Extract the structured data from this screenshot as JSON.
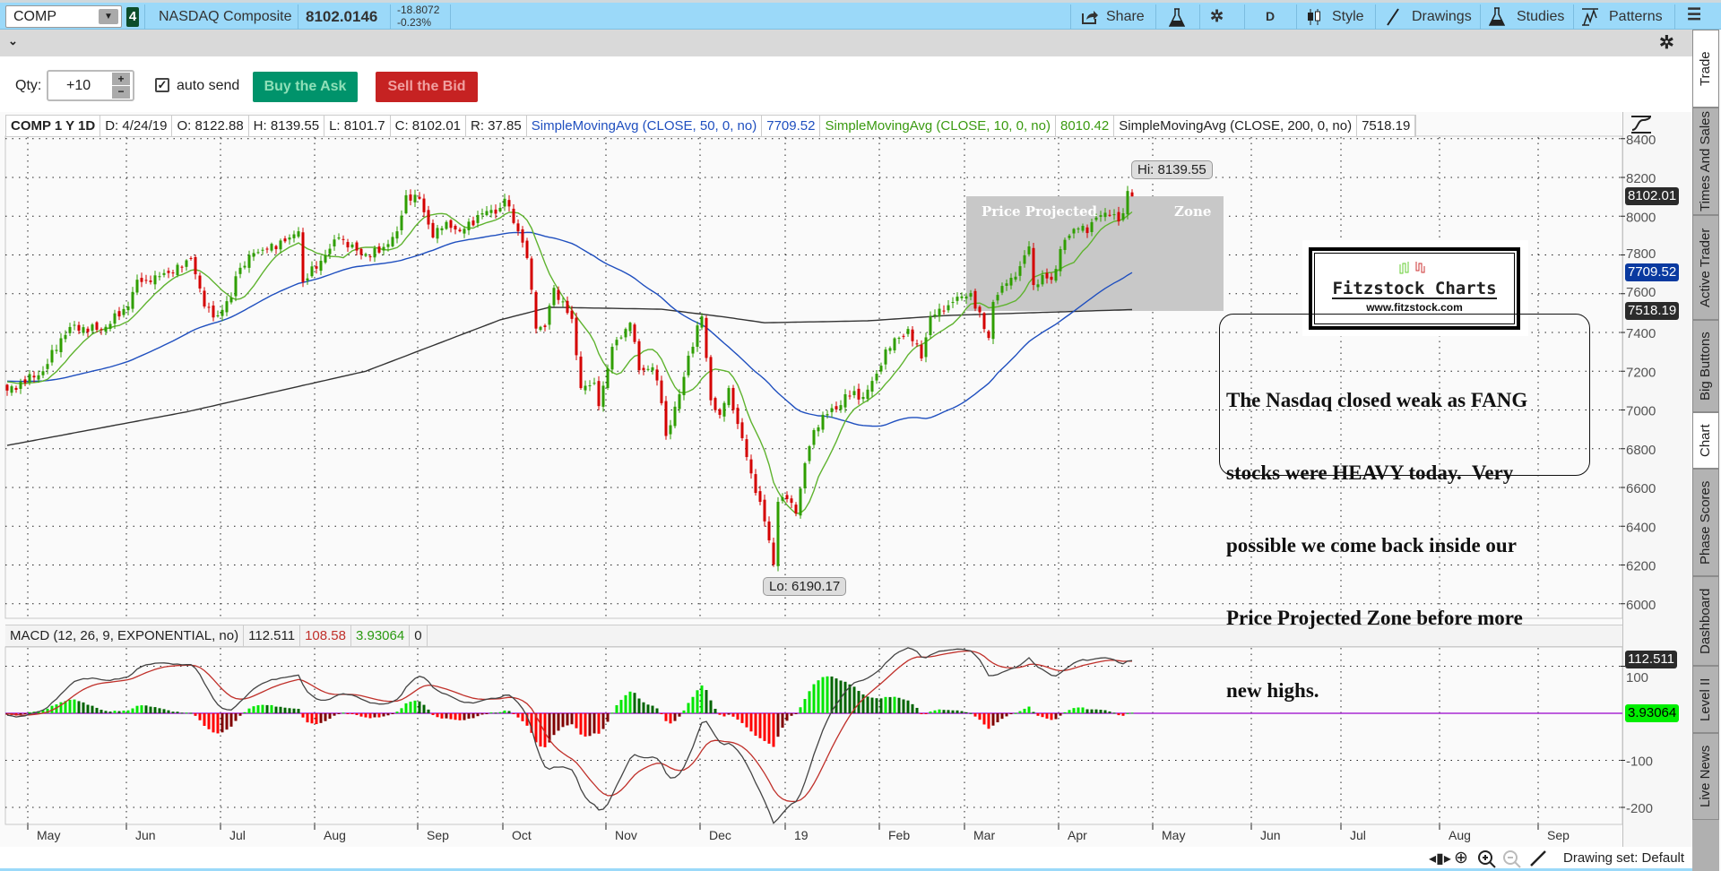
{
  "toolbar": {
    "symbol": "COMP",
    "link_badge": "4",
    "description": "NASDAQ Composite",
    "last": "8102.0146",
    "net_change": "-18.8072",
    "pct_change": "-0.23%",
    "share_label": "Share",
    "period": "D",
    "style_label": "Style",
    "drawings_label": "Drawings",
    "studies_label": "Studies",
    "patterns_label": "Patterns"
  },
  "order_bar": {
    "qty_label": "Qty:",
    "qty_value": "+10",
    "auto_send_label": "auto send",
    "auto_send_checked": true,
    "buy_label": "Buy the Ask",
    "sell_label": "Sell the Bid"
  },
  "legend": {
    "title": "COMP 1 Y 1D",
    "date": "D: 4/24/19",
    "open": "O: 8122.88",
    "high": "H: 8139.55",
    "low": "L: 8101.7",
    "close": "C: 8102.01",
    "range": "R: 37.85",
    "sma50_label": "SimpleMovingAvg (CLOSE, 50, 0, no)",
    "sma50_value": "7709.52",
    "sma10_label": "SimpleMovingAvg (CLOSE, 10, 0, no)",
    "sma10_value": "8010.42",
    "sma200_label": "SimpleMovingAvg (CLOSE, 200, 0, no)",
    "sma200_value": "7518.19"
  },
  "macd_legend": {
    "label": "MACD (12, 26, 9, EXPONENTIAL, no)",
    "value": "112.511",
    "avg": "108.58",
    "diff": "3.93064",
    "zero": "0"
  },
  "price_badges": {
    "last": "8102.01",
    "sma50": "7709.52",
    "sma200": "7518.19",
    "macd": "112.511",
    "hist": "3.93064"
  },
  "annotations": {
    "hi": "Hi: 8139.55",
    "lo": "Lo: 6190.17",
    "zone_left": "Price Projected",
    "zone_right": "Zone",
    "logo_title": "Fitzstock Charts",
    "logo_url": "www.fitzstock.com",
    "comment_lines": [
      "The Nasdaq closed weak as FANG",
      "stocks were HEAVY today.  Very",
      "possible we come back inside our",
      "Price Projected Zone before more",
      "new highs."
    ]
  },
  "side_tabs": [
    "Trade",
    "Times And Sales",
    "Active Trader",
    "Big Buttons",
    "Chart",
    "Phase Scores",
    "Dashboard",
    "Level II",
    "Live News"
  ],
  "status_bar": {
    "drawing_set": "Drawing set: Default"
  },
  "colors": {
    "toolbar_bg": "#9bd9f9",
    "buy": "#00936b",
    "sell": "#c62222",
    "up_candle": "#2f9e00",
    "down_candle": "#d40000",
    "sma50": "#1f4fbf",
    "sma10": "#5fb32f",
    "sma200": "#333333",
    "macd_line": "#444444",
    "macd_avg": "#c0302a",
    "zero_line": "#9900cc"
  },
  "chart_data": {
    "type": "bar",
    "style": "candlestick",
    "title": "COMP 1 Y 1D",
    "num_bars": 252,
    "y_ticks": [
      6000,
      6200,
      6400,
      6600,
      6800,
      7000,
      7200,
      7400,
      7600,
      7800,
      8000,
      8200,
      8400
    ],
    "ylim": [
      5950,
      8420
    ],
    "x_ticks": [
      "May",
      "Jun",
      "Jul",
      "Aug",
      "Sep",
      "Oct",
      "Nov",
      "Dec",
      "19",
      "Feb",
      "Mar",
      "Apr",
      "May",
      "Jun",
      "Jul",
      "Aug",
      "Sep"
    ],
    "last_bar": {
      "open": 8122.88,
      "high": 8139.55,
      "low": 8101.7,
      "close": 8102.01
    },
    "period_low": 6190.17,
    "period_high": 8139.55,
    "prehistory_close": 7150,
    "close_anchors": [
      [
        0,
        7100
      ],
      [
        8,
        7200
      ],
      [
        12,
        7370
      ],
      [
        14,
        7428
      ],
      [
        21,
        7414
      ],
      [
        27,
        7534
      ],
      [
        29,
        7672
      ],
      [
        32,
        7660
      ],
      [
        35,
        7706
      ],
      [
        39,
        7736
      ],
      [
        41,
        7782
      ],
      [
        44,
        7534
      ],
      [
        47,
        7488
      ],
      [
        50,
        7580
      ],
      [
        51,
        7690
      ],
      [
        55,
        7810
      ],
      [
        58,
        7830
      ],
      [
        63,
        7890
      ],
      [
        65,
        7922
      ],
      [
        66,
        7660
      ],
      [
        71,
        7800
      ],
      [
        74,
        7890
      ],
      [
        79,
        7800
      ],
      [
        83,
        7812
      ],
      [
        87,
        7922
      ],
      [
        89,
        8108
      ],
      [
        92,
        8090
      ],
      [
        95,
        7890
      ],
      [
        98,
        7970
      ],
      [
        101,
        7922
      ],
      [
        106,
        8015
      ],
      [
        110,
        8043
      ],
      [
        111,
        8090
      ],
      [
        114,
        7922
      ],
      [
        116,
        7784
      ],
      [
        118,
        7420
      ],
      [
        120,
        7428
      ],
      [
        122,
        7630
      ],
      [
        126,
        7470
      ],
      [
        128,
        7113
      ],
      [
        131,
        7140
      ],
      [
        132,
        7020
      ],
      [
        135,
        7326
      ],
      [
        137,
        7374
      ],
      [
        139,
        7450
      ],
      [
        141,
        7205
      ],
      [
        144,
        7220
      ],
      [
        146,
        7035
      ],
      [
        147,
        6866
      ],
      [
        150,
        7081
      ],
      [
        152,
        7280
      ],
      [
        155,
        7483
      ],
      [
        157,
        7050
      ],
      [
        159,
        6975
      ],
      [
        161,
        7113
      ],
      [
        163,
        6928
      ],
      [
        165,
        6757
      ],
      [
        167,
        6572
      ],
      [
        168,
        6526
      ],
      [
        170,
        6327
      ],
      [
        171,
        6202
      ],
      [
        172,
        6526
      ],
      [
        174,
        6540
      ],
      [
        176,
        6466
      ],
      [
        178,
        6725
      ],
      [
        180,
        6896
      ],
      [
        182,
        6975
      ],
      [
        185,
        7003
      ],
      [
        187,
        7081
      ],
      [
        191,
        7067
      ],
      [
        194,
        7187
      ],
      [
        196,
        7312
      ],
      [
        199,
        7372
      ],
      [
        201,
        7418
      ],
      [
        204,
        7266
      ],
      [
        206,
        7483
      ],
      [
        209,
        7511
      ],
      [
        211,
        7557
      ],
      [
        215,
        7603
      ],
      [
        218,
        7418
      ],
      [
        219,
        7372
      ],
      [
        220,
        7557
      ],
      [
        222,
        7640
      ],
      [
        224,
        7682
      ],
      [
        226,
        7742
      ],
      [
        228,
        7844
      ],
      [
        229,
        7645
      ],
      [
        231,
        7696
      ],
      [
        233,
        7672
      ],
      [
        234,
        7728
      ],
      [
        235,
        7830
      ],
      [
        237,
        7900
      ],
      [
        239,
        7936
      ],
      [
        240,
        7950
      ],
      [
        241,
        7913
      ],
      [
        242,
        7969
      ],
      [
        244,
        8005
      ],
      [
        246,
        8006
      ],
      [
        248,
        7973
      ],
      [
        249,
        8015
      ],
      [
        250,
        8130
      ],
      [
        251,
        8102.01
      ]
    ],
    "sma200_anchors": [
      [
        0,
        6817
      ],
      [
        40,
        6990
      ],
      [
        80,
        7200
      ],
      [
        110,
        7465
      ],
      [
        121,
        7530
      ],
      [
        146,
        7520
      ],
      [
        160,
        7480
      ],
      [
        169,
        7450
      ],
      [
        192,
        7460
      ],
      [
        210,
        7488
      ],
      [
        251,
        7518
      ]
    ],
    "series": [
      {
        "name": "SimpleMovingAvg (CLOSE, 50)",
        "last": 7709.52
      },
      {
        "name": "SimpleMovingAvg (CLOSE, 10)",
        "last": 8010.42
      },
      {
        "name": "SimpleMovingAvg (CLOSE, 200)",
        "last": 7518.19
      }
    ],
    "zone": {
      "label": "Price Projected Zone",
      "low": 7510,
      "high": 8100
    },
    "macd": {
      "fast": 12,
      "slow": 26,
      "signal": 9,
      "last_value": 112.511,
      "last_avg": 108.58,
      "last_diff": 3.93064,
      "y_ticks": [
        100,
        -100,
        -200
      ],
      "ylim": [
        -238,
        142
      ]
    }
  }
}
